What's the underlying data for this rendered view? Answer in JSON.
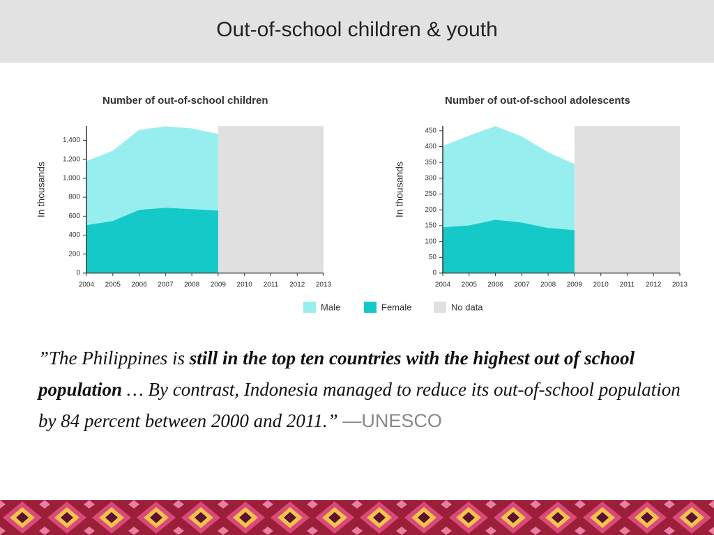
{
  "title": "Out-of-school children & youth",
  "quote": [
    {
      "text": "”The Philippines is ",
      "bold": false
    },
    {
      "text": "still in the top ten countries with the highest out of school population",
      "bold": true
    },
    {
      "text": " … By contrast, Indonesia managed to reduce its out-of-school population by 84 percent between 2000 and 2011.” ",
      "bold": false
    }
  ],
  "attribution": "—UNESCO",
  "chart_data": [
    {
      "type": "area",
      "stacked": true,
      "title": "Number of out-of-school children",
      "y_label": "In thousands",
      "x": [
        2004,
        2005,
        2006,
        2007,
        2008,
        2009
      ],
      "series": [
        {
          "color": "#16c9c9",
          "values": [
            506,
            550,
            667,
            690,
            675,
            660
          ]
        },
        {
          "color": "#96eeef",
          "values": [
            674,
            740,
            843,
            857,
            850,
            806
          ]
        }
      ],
      "no_data": {
        "color": "#e0e0e0",
        "x": [
          2009,
          2013
        ]
      },
      "xlim": [
        2004,
        2013
      ],
      "xticks": [
        2004,
        2005,
        2006,
        2007,
        2008,
        2009,
        2010,
        2011,
        2012,
        2013
      ],
      "ylim": [
        0,
        1550
      ],
      "yticks": [
        0,
        200,
        400,
        600,
        800,
        {
          "value": 1000,
          "label": "1,000"
        },
        {
          "value": 1200,
          "label": "1,200"
        },
        {
          "value": 1400,
          "label": "1,400"
        }
      ]
    },
    {
      "type": "area",
      "stacked": true,
      "title": "Number of out-of-school adolescents",
      "y_label": "In thousands",
      "x": [
        2004,
        2005,
        2006,
        2007,
        2008,
        2009
      ],
      "series": [
        {
          "name": "Female",
          "color": "#16c9c9",
          "values": [
            145,
            151,
            169,
            160,
            143,
            136
          ]
        },
        {
          "name": "Male",
          "color": "#96eeef",
          "values": [
            257,
            284,
            296,
            272,
            239,
            209
          ]
        }
      ],
      "no_data": {
        "name": "No data",
        "color": "#e0e0e0",
        "x": [
          2009,
          2013
        ]
      },
      "xlim": [
        2004,
        2013
      ],
      "xticks": [
        2004,
        2005,
        2006,
        2007,
        2008,
        2009,
        2010,
        2011,
        2012,
        2013
      ],
      "ylim": [
        0,
        465
      ],
      "yticks": [
        0,
        50,
        100,
        150,
        200,
        250,
        300,
        350,
        400,
        450
      ]
    }
  ]
}
